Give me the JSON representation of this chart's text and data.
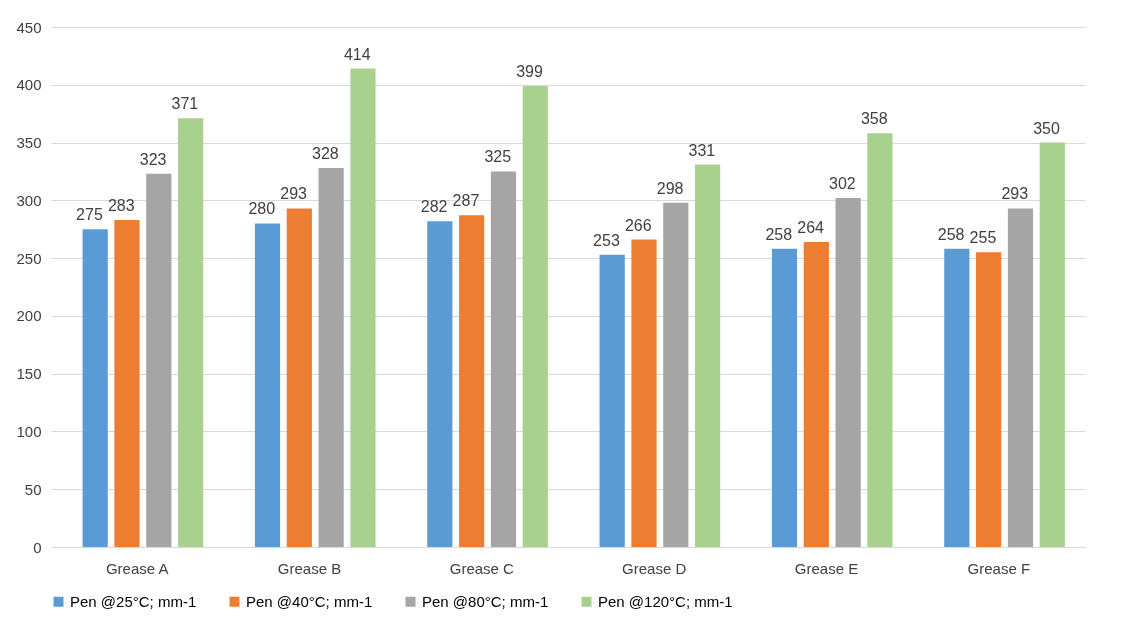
{
  "chart_data": {
    "type": "bar",
    "categories": [
      "Grease A",
      "Grease B",
      "Grease C",
      "Grease D",
      "Grease E",
      "Grease F"
    ],
    "series": [
      {
        "name": "Pen @25°C; mm-1",
        "color": "#5b9bd5",
        "values": [
          275,
          280,
          282,
          253,
          258,
          258
        ]
      },
      {
        "name": "Pen @40°C; mm-1",
        "color": "#ed7d31",
        "values": [
          283,
          293,
          287,
          266,
          264,
          255
        ]
      },
      {
        "name": "Pen @80°C; mm-1",
        "color": "#a5a5a5",
        "values": [
          323,
          328,
          325,
          298,
          302,
          293
        ]
      },
      {
        "name": "Pen @120°C; mm-1",
        "color": "#a9d18e",
        "values": [
          371,
          414,
          399,
          331,
          358,
          350
        ]
      }
    ],
    "ylim": [
      0,
      450
    ],
    "yticks": [
      0,
      50,
      100,
      150,
      200,
      250,
      300,
      350,
      400,
      450
    ],
    "grid": "y",
    "legend": "bottom",
    "data_labels": true
  }
}
